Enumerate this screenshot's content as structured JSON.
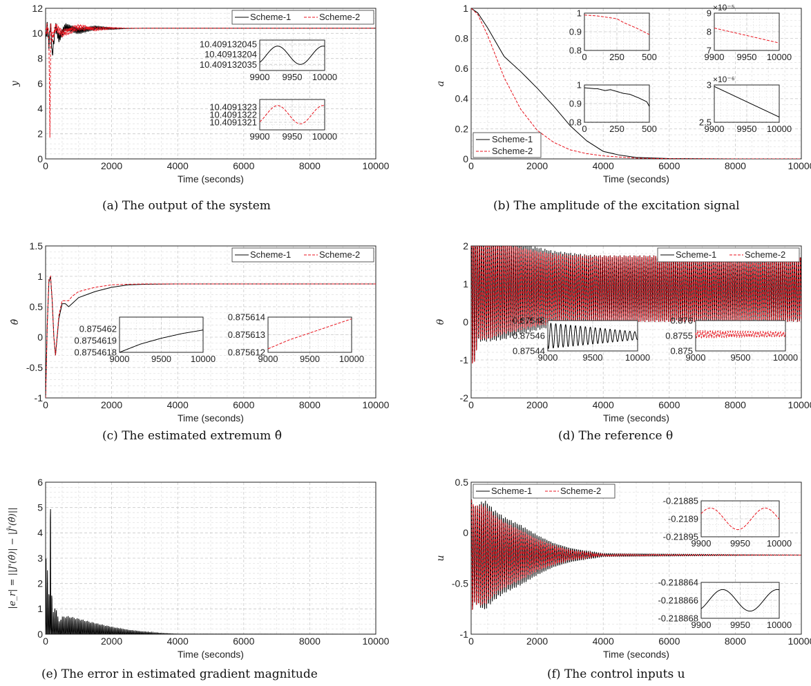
{
  "figure": {
    "captions": {
      "a": "(a) The output of the system",
      "b": "(b) The amplitude of the excitation signal",
      "c": "(c) The estimated extremum θ̂",
      "d": "(d) The reference θ",
      "e": "(e) The error in estimated gradient magnitude",
      "f": "(f) The control inputs u"
    },
    "colors": {
      "scheme1": "#000000",
      "scheme2": "#e8121c",
      "grid": "#c8c8c8",
      "minor_grid": "#dedede"
    }
  },
  "chart_data": [
    {
      "id": "a",
      "type": "line",
      "xlabel": "Time (seconds)",
      "ylabel": "y",
      "xlim": [
        0,
        10000
      ],
      "ylim": [
        0,
        12
      ],
      "xticks": [
        "0",
        "2000",
        "4000",
        "6000",
        "8000",
        "10000"
      ],
      "yticks": [
        "0",
        "2",
        "4",
        "6",
        "8",
        "10",
        "12"
      ],
      "legend": "top-right",
      "legend_entries": [
        "Scheme-1",
        "Scheme-2"
      ],
      "series": [
        {
          "name": "Scheme-1",
          "x": [
            0,
            50,
            100,
            150,
            200,
            300,
            400,
            600,
            1000,
            1500,
            2000,
            3000,
            4000,
            6000,
            8000,
            10000
          ],
          "y": [
            9.5,
            10.6,
            9.0,
            10.8,
            8.2,
            10.6,
            9.6,
            10.5,
            10.2,
            10.45,
            10.38,
            10.41,
            10.41,
            10.41,
            10.41,
            10.41
          ]
        },
        {
          "name": "Scheme-2",
          "x": [
            0,
            50,
            100,
            130,
            160,
            200,
            300,
            500,
            1000,
            1500,
            2000,
            3000,
            4000,
            6000,
            8000,
            10000
          ],
          "y": [
            10.0,
            10.5,
            9.8,
            1.9,
            10.6,
            9.5,
            10.5,
            10.0,
            10.5,
            10.35,
            10.42,
            10.41,
            10.41,
            10.41,
            10.41,
            10.41
          ]
        }
      ],
      "insets": [
        {
          "xlim": [
            9900,
            10000
          ],
          "xticks": [
            "9900",
            "9950",
            "10000"
          ],
          "yticks": [
            "10.409132045",
            "10.40913204",
            "10.409132035"
          ],
          "series": "Scheme-1",
          "x": [
            9900,
            9925,
            9950,
            9975,
            10000
          ],
          "y": [
            10.409132038,
            10.409132034,
            10.409132043,
            10.409132034,
            10.409132041
          ],
          "ylim": [
            10.409132032,
            10.409132047
          ]
        },
        {
          "xlim": [
            9900,
            10000
          ],
          "xticks": [
            "9900",
            "9950",
            "10000"
          ],
          "yticks": [
            "10.4091323",
            "10.4091322",
            "10.4091321"
          ],
          "series": "Scheme-2",
          "x": [
            9900,
            9925,
            9950,
            9975,
            10000
          ],
          "y": [
            10.40913212,
            10.40913215,
            10.40913226,
            10.40913212,
            10.40913222
          ],
          "ylim": [
            10.409132,
            10.4091324
          ]
        }
      ]
    },
    {
      "id": "b",
      "type": "line",
      "xlabel": "Time (seconds)",
      "ylabel": "a",
      "xlim": [
        0,
        10000
      ],
      "ylim": [
        0,
        1
      ],
      "xticks": [
        "0",
        "2000",
        "4000",
        "6000",
        "8000",
        "10000"
      ],
      "yticks": [
        "0",
        "0.2",
        "0.4",
        "0.6",
        "0.8",
        "1"
      ],
      "legend": "bottom-left",
      "legend_entries": [
        "Scheme-1",
        "Scheme-2"
      ],
      "series": [
        {
          "name": "Scheme-1",
          "x": [
            0,
            200,
            500,
            1000,
            1500,
            2000,
            2500,
            3000,
            3500,
            4000,
            4500,
            5000,
            6000,
            8000,
            10000
          ],
          "y": [
            1.0,
            0.97,
            0.87,
            0.68,
            0.58,
            0.47,
            0.35,
            0.22,
            0.12,
            0.05,
            0.025,
            0.01,
            0.002,
            0.0,
            0.0
          ]
        },
        {
          "name": "Scheme-2",
          "x": [
            0,
            200,
            500,
            1000,
            1500,
            2000,
            2500,
            3000,
            3500,
            4000,
            5000,
            6000,
            8000,
            10000
          ],
          "y": [
            1.0,
            0.96,
            0.82,
            0.54,
            0.33,
            0.19,
            0.11,
            0.06,
            0.035,
            0.02,
            0.005,
            0.001,
            0.0,
            0.0
          ]
        }
      ],
      "insets": [
        {
          "xlim": [
            0,
            500
          ],
          "xticks": [
            "0",
            "250",
            "500"
          ],
          "ylim": [
            0.8,
            1
          ],
          "yticks": [
            "1",
            "0.9",
            "0.8"
          ],
          "series": "Scheme-2",
          "x": [
            0,
            100,
            200,
            250,
            300,
            400,
            500
          ],
          "y": [
            0.99,
            0.985,
            0.975,
            0.97,
            0.95,
            0.92,
            0.885
          ]
        },
        {
          "xlim": [
            9900,
            10000
          ],
          "xticks": [
            "9900",
            "9950",
            "10000"
          ],
          "ylim": [
            7,
            9
          ],
          "yticks": [
            "9",
            "8",
            "7"
          ],
          "exponent": "×10⁻⁵",
          "series": "Scheme-2",
          "x": [
            9900,
            10000
          ],
          "y": [
            8.2,
            7.4
          ]
        },
        {
          "xlim": [
            0,
            500
          ],
          "xticks": [
            "0",
            "250",
            "500"
          ],
          "ylim": [
            0.8,
            1
          ],
          "yticks": [
            "1",
            "0.9",
            "0.8"
          ],
          "series": "Scheme-1",
          "x": [
            0,
            80,
            100,
            160,
            200,
            300,
            350,
            420,
            480,
            500
          ],
          "y": [
            0.985,
            0.98,
            0.98,
            0.97,
            0.975,
            0.955,
            0.95,
            0.93,
            0.91,
            0.885
          ]
        },
        {
          "xlim": [
            9900,
            10000
          ],
          "xticks": [
            "9900",
            "9950",
            "10000"
          ],
          "ylim": [
            2.5,
            3
          ],
          "yticks": [
            "3",
            "2.5"
          ],
          "exponent": "×10⁻⁶",
          "series": "Scheme-1",
          "x": [
            9900,
            10000
          ],
          "y": [
            2.98,
            2.57
          ]
        }
      ]
    },
    {
      "id": "c",
      "type": "line",
      "xlabel": "Time (seconds)",
      "ylabel": "θ̂",
      "xlim": [
        0,
        10000
      ],
      "ylim": [
        -1,
        1.5
      ],
      "xticks": [
        "0",
        "2000",
        "4000",
        "6000",
        "8000",
        "10000"
      ],
      "yticks": [
        "-1",
        "-0.5",
        "0",
        "0.5",
        "1",
        "1.5"
      ],
      "legend": "top-right",
      "legend_entries": [
        "Scheme-1",
        "Scheme-2"
      ],
      "series": [
        {
          "name": "Scheme-1",
          "x": [
            0,
            50,
            100,
            150,
            200,
            250,
            300,
            400,
            500,
            600,
            700,
            800,
            1000,
            1500,
            2000,
            2500,
            3000,
            4000,
            6000,
            8000,
            10000
          ],
          "y": [
            -1.0,
            0.2,
            0.9,
            1.0,
            0.6,
            0.0,
            -0.3,
            0.3,
            0.55,
            0.55,
            0.5,
            0.55,
            0.65,
            0.75,
            0.82,
            0.86,
            0.87,
            0.875,
            0.875,
            0.875,
            0.875
          ]
        },
        {
          "name": "Scheme-2",
          "x": [
            0,
            50,
            100,
            150,
            200,
            250,
            300,
            400,
            500,
            600,
            700,
            800,
            1000,
            1500,
            2000,
            2500,
            3000,
            4000,
            6000,
            8000,
            10000
          ],
          "y": [
            -1.0,
            0.2,
            0.95,
            1.0,
            0.6,
            0.0,
            -0.3,
            0.35,
            0.6,
            0.6,
            0.6,
            0.67,
            0.75,
            0.82,
            0.86,
            0.87,
            0.875,
            0.875,
            0.875,
            0.875,
            0.875
          ]
        }
      ],
      "insets": [
        {
          "xlim": [
            9000,
            10000
          ],
          "xticks": [
            "9000",
            "9500",
            "10000"
          ],
          "ylim": [
            0.8754618,
            0.8754621
          ],
          "yticks": [
            "0.875462",
            "0.8754619",
            "0.8754618"
          ],
          "series": "Scheme-1",
          "x": [
            9000,
            9250,
            9500,
            9750,
            10000
          ],
          "y": [
            0.8754618,
            0.87546187,
            0.87546192,
            0.87546196,
            0.87546199
          ]
        },
        {
          "xlim": [
            9000,
            10000
          ],
          "xticks": [
            "9000",
            "9500",
            "10000"
          ],
          "ylim": [
            0.875612,
            0.875614
          ],
          "yticks": [
            "0.875614",
            "0.875613",
            "0.875612"
          ],
          "series": "Scheme-2",
          "x": [
            9000,
            9250,
            9500,
            9750,
            10000
          ],
          "y": [
            0.8756122,
            0.8756127,
            0.8756131,
            0.8756135,
            0.8756139
          ]
        }
      ]
    },
    {
      "id": "d",
      "type": "line",
      "xlabel": "Time (seconds)",
      "ylabel": "θ",
      "xlim": [
        0,
        10000
      ],
      "ylim": [
        -2,
        2
      ],
      "xticks": [
        "0",
        "2000",
        "4000",
        "6000",
        "8000",
        "10000"
      ],
      "yticks": [
        "-2",
        "-1",
        "0",
        "1",
        "2"
      ],
      "legend": "top-right",
      "legend_entries": [
        "Scheme-1",
        "Scheme-2"
      ],
      "series": [
        {
          "name": "Scheme-1",
          "envelope_x": [
            0,
            100,
            200,
            500,
            1000,
            1500,
            2000,
            2500,
            3000,
            3500,
            4000,
            10000
          ],
          "envelope": [
            2.0,
            2.0,
            1.4,
            1.4,
            1.35,
            1.2,
            1.1,
            1.0,
            0.95,
            0.9,
            0.88,
            0.875
          ],
          "center": 0.875
        },
        {
          "name": "Scheme-2",
          "envelope_x": [
            0,
            100,
            200,
            500,
            1000,
            1500,
            2000,
            2500,
            3000,
            3500,
            4000,
            10000
          ],
          "envelope": [
            2.0,
            2.0,
            1.35,
            1.35,
            1.2,
            1.1,
            1.0,
            0.93,
            0.9,
            0.88,
            0.876,
            0.875
          ],
          "center": 0.875
        }
      ],
      "insets": [
        {
          "xlim": [
            9000,
            10000
          ],
          "xticks": [
            "9000",
            "9500",
            "10000"
          ],
          "ylim": [
            0.87544,
            0.87548
          ],
          "yticks": [
            "0.87548",
            "0.87546",
            "0.87544"
          ],
          "series": "Scheme-1",
          "oscillation": true,
          "center": 0.87546,
          "amp_start": 1.7e-05,
          "amp_end": 5e-06
        },
        {
          "xlim": [
            9000,
            10000
          ],
          "xticks": [
            "9000",
            "9500",
            "10000"
          ],
          "ylim": [
            0.875,
            0.876
          ],
          "yticks": [
            "0.876",
            "0.8755",
            "0.875"
          ],
          "series": "Scheme-2",
          "oscillation": true,
          "center": 0.87555,
          "amp_start": 0.00012,
          "amp_end": 8e-05
        }
      ]
    },
    {
      "id": "e",
      "type": "line",
      "xlabel": "Time (seconds)",
      "ylabel": "|e_r| = ||J'(θ̂)| − |Ĵ'(θ̂)||",
      "xlim": [
        0,
        10000
      ],
      "ylim": [
        0,
        6
      ],
      "xticks": [
        "0",
        "2000",
        "4000",
        "6000",
        "8000",
        "10000"
      ],
      "yticks": [
        "0",
        "1",
        "2",
        "3",
        "4",
        "5",
        "6"
      ],
      "series": [
        {
          "name": "Scheme-1",
          "envelope_x": [
            0,
            50,
            100,
            150,
            200,
            300,
            400,
            500,
            700,
            1000,
            1500,
            2000,
            2500,
            3000,
            3500,
            4000,
            10000
          ],
          "envelope": [
            3.5,
            2.7,
            1.6,
            5.7,
            0.7,
            1.2,
            0.5,
            0.7,
            0.72,
            0.62,
            0.45,
            0.3,
            0.18,
            0.1,
            0.04,
            0.01,
            0.0
          ],
          "center": 0.0
        }
      ]
    },
    {
      "id": "f",
      "type": "line",
      "xlabel": "Time (seconds)",
      "ylabel": "u",
      "xlim": [
        0,
        10000
      ],
      "ylim": [
        -1,
        0.5
      ],
      "xticks": [
        "0",
        "2000",
        "4000",
        "6000",
        "8000",
        "10000"
      ],
      "yticks": [
        "-1",
        "-0.5",
        "0",
        "0.5"
      ],
      "legend": "top-left",
      "legend_entries": [
        "Scheme-1",
        "Scheme-2"
      ],
      "series": [
        {
          "name": "Scheme-1",
          "envelope_x": [
            0,
            50,
            100,
            200,
            400,
            700,
            1000,
            1500,
            2000,
            2500,
            3000,
            3500,
            4000,
            10000
          ],
          "envelope": [
            0.55,
            0.55,
            0.48,
            0.5,
            0.55,
            0.45,
            0.38,
            0.3,
            0.2,
            0.12,
            0.07,
            0.04,
            0.015,
            0.0
          ],
          "center": -0.219
        },
        {
          "name": "Scheme-2",
          "envelope_x": [
            0,
            50,
            100,
            200,
            400,
            700,
            1000,
            1500,
            2000,
            2500,
            3000,
            3500,
            4000,
            10000
          ],
          "envelope": [
            0.55,
            0.55,
            0.48,
            0.5,
            0.5,
            0.4,
            0.33,
            0.25,
            0.16,
            0.1,
            0.05,
            0.03,
            0.01,
            0.0
          ],
          "center": -0.219
        }
      ],
      "insets": [
        {
          "xlim": [
            9900,
            10000
          ],
          "xticks": [
            "9900",
            "9950",
            "10000"
          ],
          "ylim": [
            -0.21895,
            -0.21885
          ],
          "yticks": [
            "-0.21885",
            "-0.2189",
            "-0.21895"
          ],
          "series": "Scheme-2",
          "x": [
            9900,
            9915,
            9945,
            9980,
            10000
          ],
          "y": [
            -0.2189,
            -0.21888,
            -0.21893,
            -0.21887,
            -0.21891
          ]
        },
        {
          "xlim": [
            9900,
            10000
          ],
          "xticks": [
            "9900",
            "9950",
            "10000"
          ],
          "ylim": [
            -0.218868,
            -0.218864
          ],
          "yticks": [
            "-0.218864",
            "-0.218866",
            "-0.218868"
          ],
          "series": "Scheme-1",
          "x": [
            9900,
            9915,
            9945,
            9980,
            10000
          ],
          "y": [
            -0.218866,
            -0.2188654,
            -0.2188664,
            -0.2188652,
            -0.218866
          ]
        }
      ]
    }
  ]
}
